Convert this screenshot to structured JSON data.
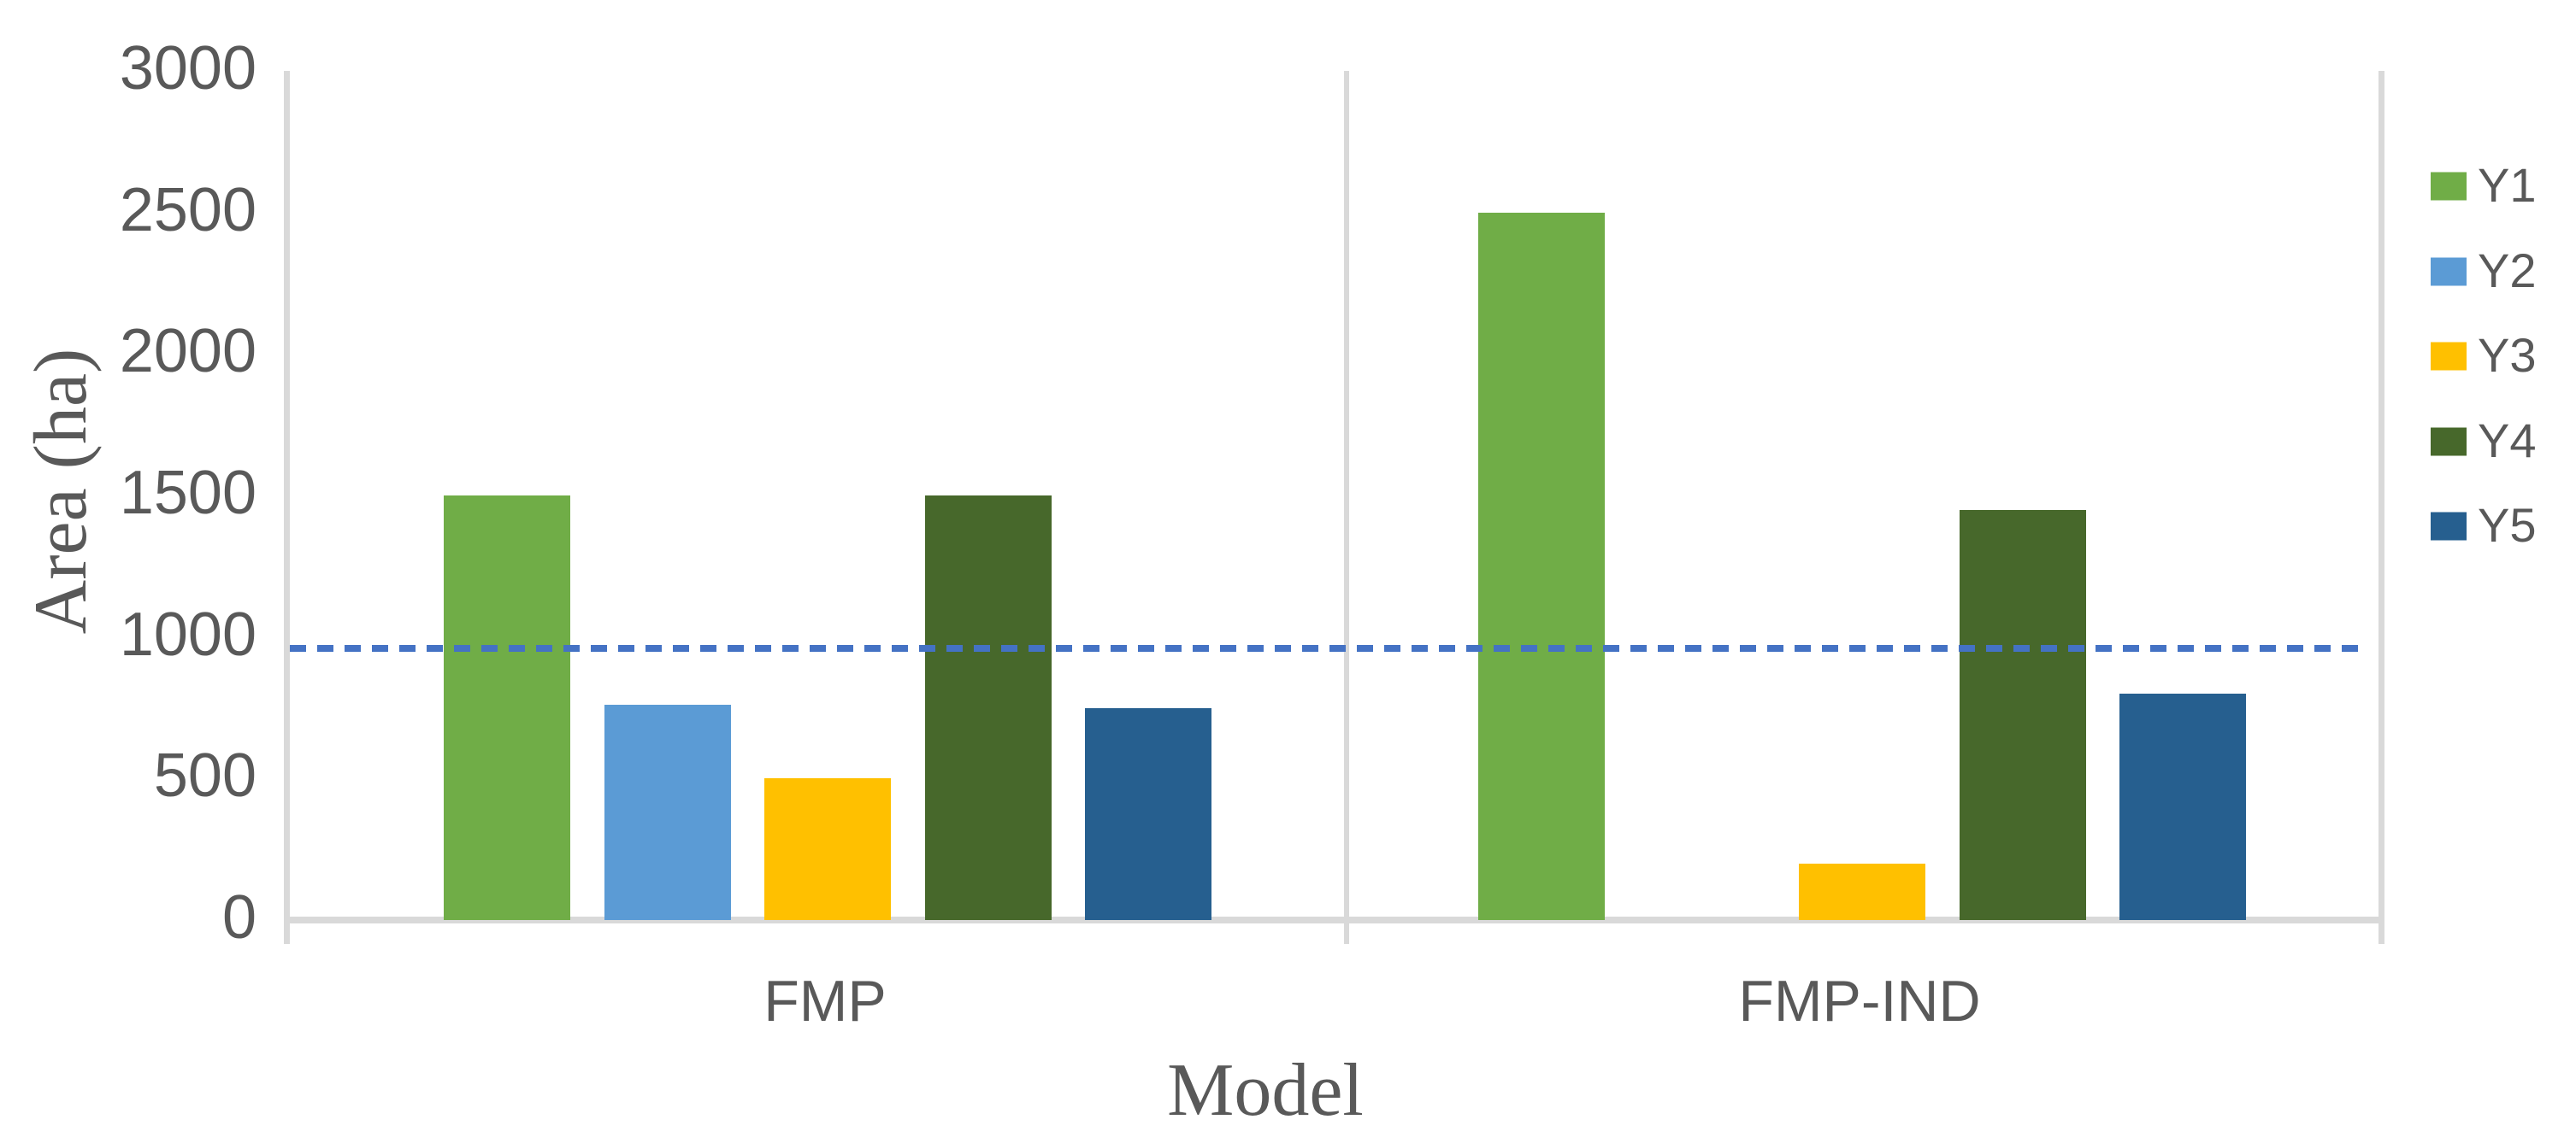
{
  "chart_data": {
    "type": "bar",
    "title": "",
    "xlabel": "Model",
    "ylabel": "Area (ha)",
    "categories": [
      "FMP",
      "FMP-IND"
    ],
    "series": [
      {
        "name": "Y1",
        "color": "#70AD47",
        "values": [
          1500,
          2500
        ]
      },
      {
        "name": "Y2",
        "color": "#5B9BD5",
        "values": [
          760,
          0
        ]
      },
      {
        "name": "Y3",
        "color": "#FFC000",
        "values": [
          500,
          200
        ]
      },
      {
        "name": "Y4",
        "color": "#47682B",
        "values": [
          1500,
          1450
        ]
      },
      {
        "name": "Y5",
        "color": "#265F8F",
        "values": [
          750,
          800
        ]
      }
    ],
    "reference_line": {
      "value": 960,
      "style": "dashed",
      "color": "#4472C4"
    },
    "y_axis": {
      "min": 0,
      "max": 3000,
      "tick_interval": 500,
      "ticks": [
        0,
        500,
        1000,
        1500,
        2000,
        2500,
        3000
      ]
    },
    "legend_position": "right",
    "legend_entries": [
      "Y1",
      "Y2",
      "Y3",
      "Y4",
      "Y5"
    ],
    "grid": false
  },
  "colors": {
    "background": "#FFFFFF",
    "axis_line": "#D9D9D9",
    "text": "#595959",
    "reference_line": "#4472C4"
  }
}
